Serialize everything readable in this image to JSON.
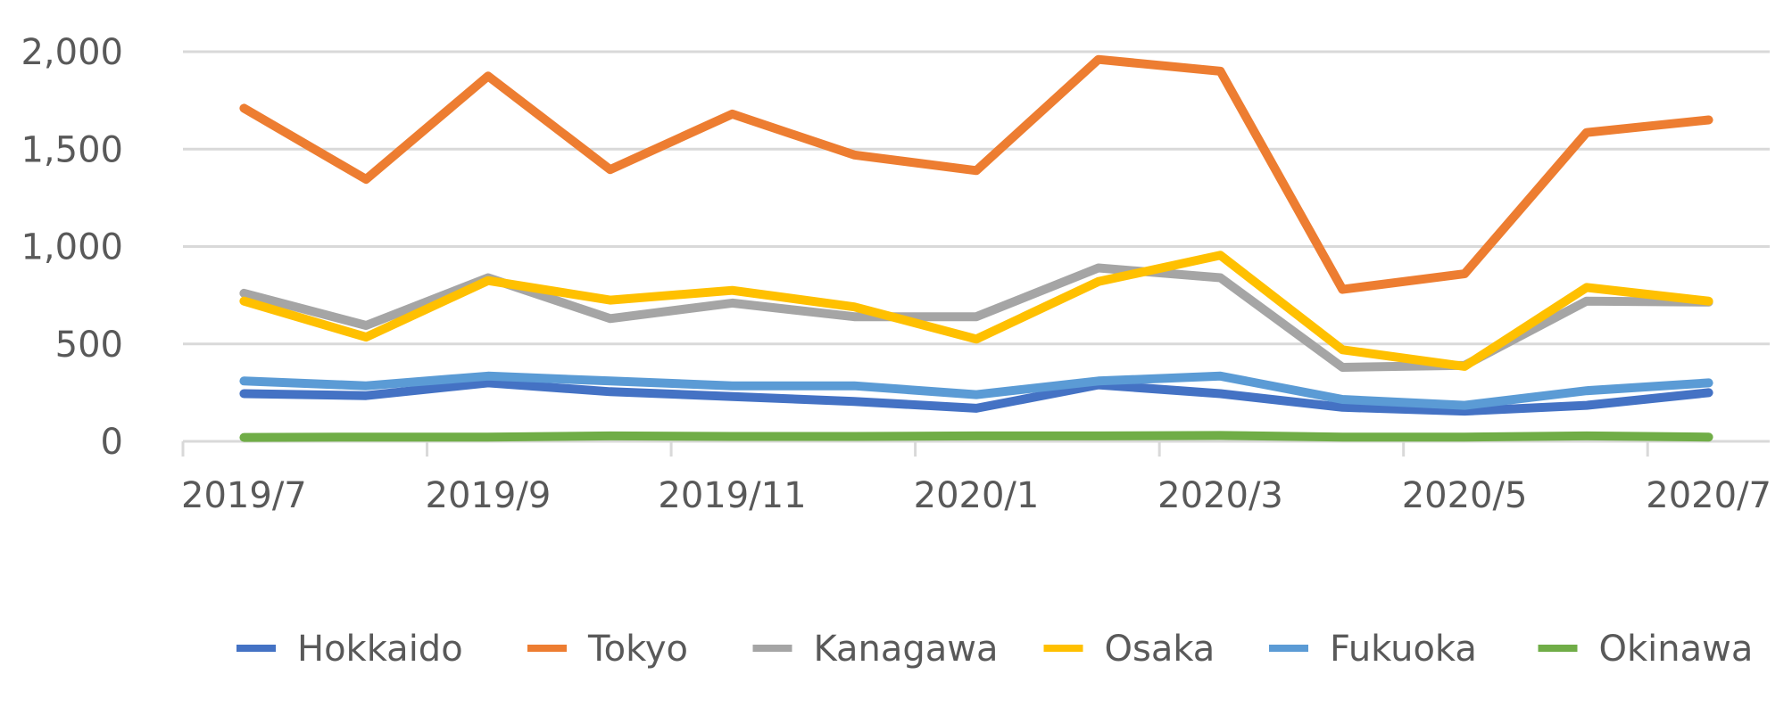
{
  "chart_data": {
    "type": "line",
    "title": "",
    "xlabel": "",
    "ylabel": "",
    "ylim": [
      0,
      2000
    ],
    "y_ticks": [
      {
        "value": 0,
        "label": "0"
      },
      {
        "value": 500,
        "label": "500"
      },
      {
        "value": 1000,
        "label": "1,000"
      },
      {
        "value": 1500,
        "label": "1,500"
      },
      {
        "value": 2000,
        "label": "2,000"
      }
    ],
    "categories": [
      "2019/7",
      "2019/8",
      "2019/9",
      "2019/10",
      "2019/11",
      "2019/12",
      "2020/1",
      "2020/2",
      "2020/3",
      "2020/4",
      "2020/5",
      "2020/6",
      "2020/7"
    ],
    "x_tick_labels": [
      {
        "index": 0,
        "label": "2019/7"
      },
      {
        "index": 2,
        "label": "2019/9"
      },
      {
        "index": 4,
        "label": "2019/11"
      },
      {
        "index": 6,
        "label": "2020/1"
      },
      {
        "index": 8,
        "label": "2020/3"
      },
      {
        "index": 10,
        "label": "2020/5"
      },
      {
        "index": 12,
        "label": "2020/7"
      }
    ],
    "grid": true,
    "legend_position": "bottom",
    "series": [
      {
        "name": "Hokkaido",
        "color": "#4472C4",
        "values": [
          245,
          235,
          300,
          255,
          230,
          205,
          170,
          290,
          245,
          175,
          155,
          185,
          250
        ]
      },
      {
        "name": "Tokyo",
        "color": "#ED7D31",
        "values": [
          1710,
          1345,
          1875,
          1395,
          1680,
          1470,
          1390,
          1960,
          1900,
          780,
          860,
          1585,
          1650
        ]
      },
      {
        "name": "Kanagawa",
        "color": "#A5A5A5",
        "values": [
          760,
          595,
          840,
          630,
          710,
          640,
          640,
          890,
          840,
          380,
          390,
          720,
          715
        ]
      },
      {
        "name": "Osaka",
        "color": "#FFC000",
        "values": [
          720,
          535,
          825,
          725,
          775,
          690,
          525,
          820,
          955,
          470,
          385,
          790,
          720
        ]
      },
      {
        "name": "Fukuoka",
        "color": "#5B9BD5",
        "values": [
          310,
          285,
          335,
          310,
          285,
          285,
          240,
          310,
          335,
          215,
          185,
          260,
          300
        ]
      },
      {
        "name": "Okinawa",
        "color": "#70AD47",
        "values": [
          20,
          22,
          22,
          28,
          25,
          25,
          28,
          28,
          30,
          22,
          22,
          28,
          22
        ]
      }
    ]
  }
}
